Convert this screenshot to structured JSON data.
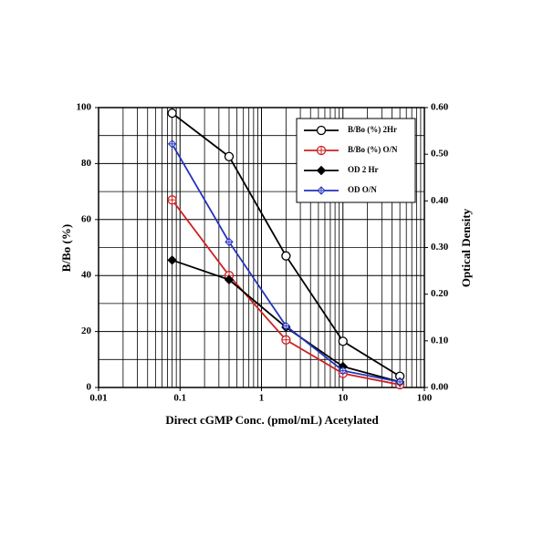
{
  "chart_data": {
    "type": "line",
    "xlabel": "Direct cGMP Conc. (pmol/mL) Acetylated",
    "ylabel": "B/Bo (%)",
    "y2label": "Optical Density",
    "xscale": "log",
    "xlim": [
      0.01,
      100
    ],
    "xticks": [
      0.01,
      0.1,
      1,
      10,
      100
    ],
    "ylim": [
      0,
      100
    ],
    "yticks": [
      0,
      20,
      40,
      60,
      80,
      100
    ],
    "yminor_grid": [
      10,
      30,
      50,
      70,
      90
    ],
    "y2lim": [
      0,
      0.6
    ],
    "y2ticks": [
      {
        "value": 0,
        "label": "0.00"
      },
      {
        "value": 0.1,
        "label": "0.10"
      },
      {
        "value": 0.2,
        "label": "0.20"
      },
      {
        "value": 0.3,
        "label": "0.30"
      },
      {
        "value": 0.4,
        "label": "0.40"
      },
      {
        "value": 0.5,
        "label": "0.50"
      },
      {
        "value": 0.6,
        "label": "0.60"
      }
    ],
    "grid": true,
    "legend": "upper right",
    "x": [
      0.08,
      0.4,
      2,
      10,
      50
    ],
    "series": [
      {
        "name": "B/Bo (%) 2Hr",
        "color": "#000000",
        "marker": "open-circle",
        "values": [
          98,
          82.5,
          47,
          16.5,
          4
        ]
      },
      {
        "name": "B/Bo (%) O/N",
        "color": "#cc2222",
        "marker": "circle-plus",
        "values": [
          67,
          40,
          17,
          5,
          1
        ]
      },
      {
        "name": "OD 2 Hr",
        "color": "#000000",
        "marker": "diamond",
        "axis": "y2",
        "values": [
          0.273,
          0.231,
          0.129,
          0.045,
          0.012
        ]
      },
      {
        "name": "OD O/N",
        "color": "#2233bb",
        "marker": "diamond-plus",
        "axis": "y2",
        "values": [
          0.522,
          0.312,
          0.132,
          0.036,
          0.012
        ]
      }
    ]
  }
}
